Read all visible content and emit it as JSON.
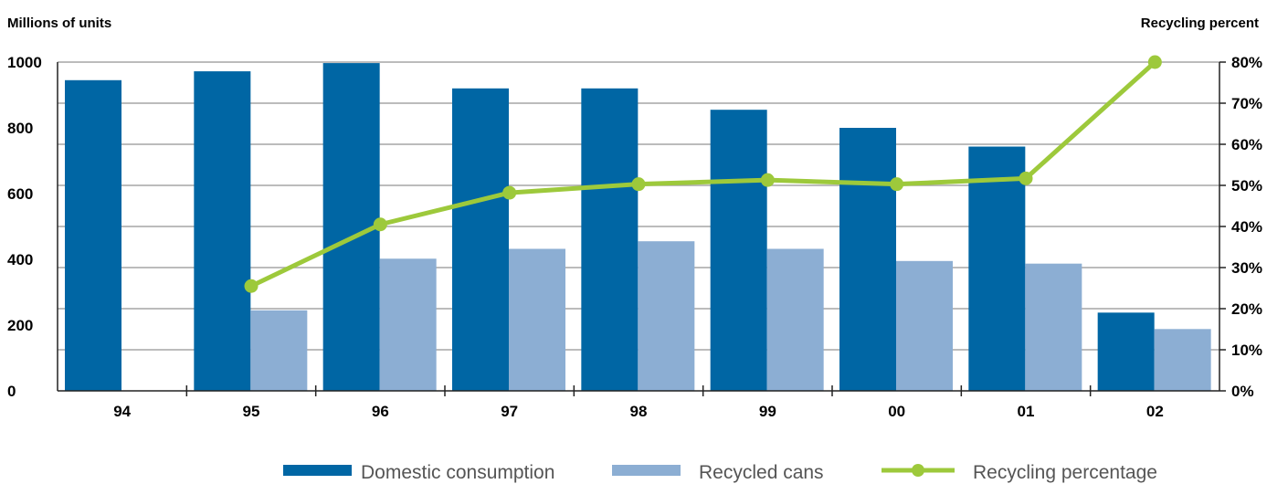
{
  "chart_data": {
    "type": "bar",
    "categories": [
      "94",
      "95",
      "96",
      "97",
      "98",
      "99",
      "00",
      "01",
      "02"
    ],
    "ylabel_left": "Millions of units",
    "ylabel_right": "Recycling percent",
    "ylim_left": [
      0,
      1000
    ],
    "ylim_right": [
      0,
      80
    ],
    "yticks_left": [
      "0",
      "200",
      "400",
      "600",
      "800",
      "1000"
    ],
    "yticks_right": [
      "0%",
      "10%",
      "20%",
      "30%",
      "40%",
      "50%",
      "60%",
      "70%",
      "80%"
    ],
    "grid": true,
    "legend_position": "bottom",
    "series": [
      {
        "name": "Domestic consumption",
        "kind": "bar",
        "color": "#0066a4",
        "values": [
          945,
          972,
          997,
          920,
          920,
          855,
          800,
          743,
          238
        ]
      },
      {
        "name": "Recycled cans",
        "kind": "bar",
        "color": "#8caed3",
        "values": [
          null,
          245,
          402,
          432,
          455,
          432,
          395,
          387,
          188
        ]
      },
      {
        "name": "Recycling percentage",
        "kind": "line",
        "axis": "right",
        "color": "#9dc93b",
        "values": [
          null,
          25.5,
          40.5,
          48.2,
          50.3,
          51.3,
          50.3,
          51.7,
          80
        ]
      }
    ]
  }
}
